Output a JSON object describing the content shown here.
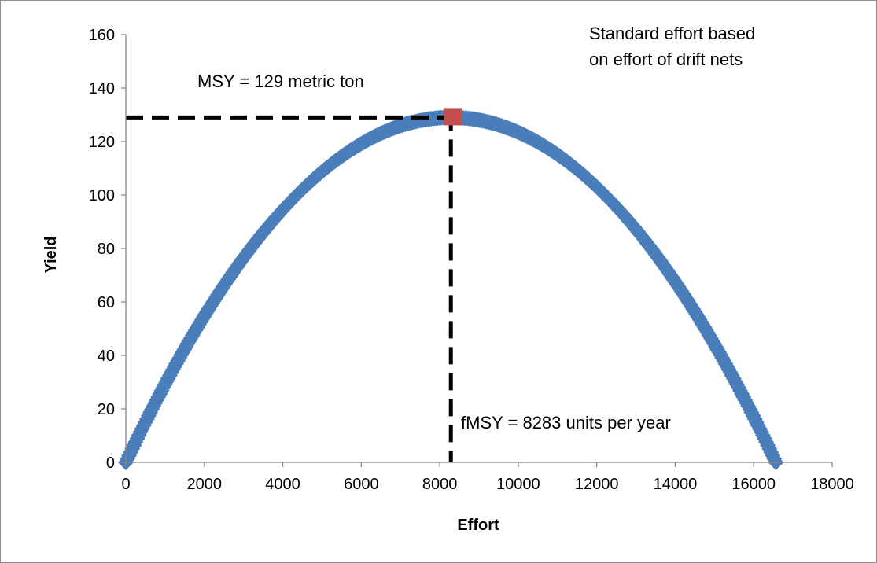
{
  "chart_data": {
    "type": "scatter",
    "xlabel": "Effort",
    "ylabel": "Yield",
    "xlim": [
      0,
      18000
    ],
    "ylim": [
      0,
      160
    ],
    "x_ticks": [
      "0",
      "2000",
      "4000",
      "6000",
      "8000",
      "10000",
      "12000",
      "14000",
      "16000",
      "18000"
    ],
    "y_ticks": [
      "0",
      "20",
      "40",
      "60",
      "80",
      "100",
      "120",
      "140",
      "160"
    ],
    "grid": false,
    "curve": {
      "model": "parabola",
      "x_start": 0,
      "x_end": 16566,
      "peak_x": 8283,
      "peak_y": 129,
      "color": "#4a7ebb"
    },
    "highlight_point": {
      "x": 8283,
      "y": 129,
      "color": "#c0504d"
    },
    "reference_lines": {
      "style": "dashed",
      "color": "#000000",
      "horizontal_y": 129,
      "vertical_x": 8283
    },
    "annotations": {
      "msy": "MSY = 129 metric ton",
      "fmsy": "fMSY = 8283 units per year",
      "note_line1": "Standard effort based",
      "note_line2": "on effort of drift nets"
    }
  }
}
